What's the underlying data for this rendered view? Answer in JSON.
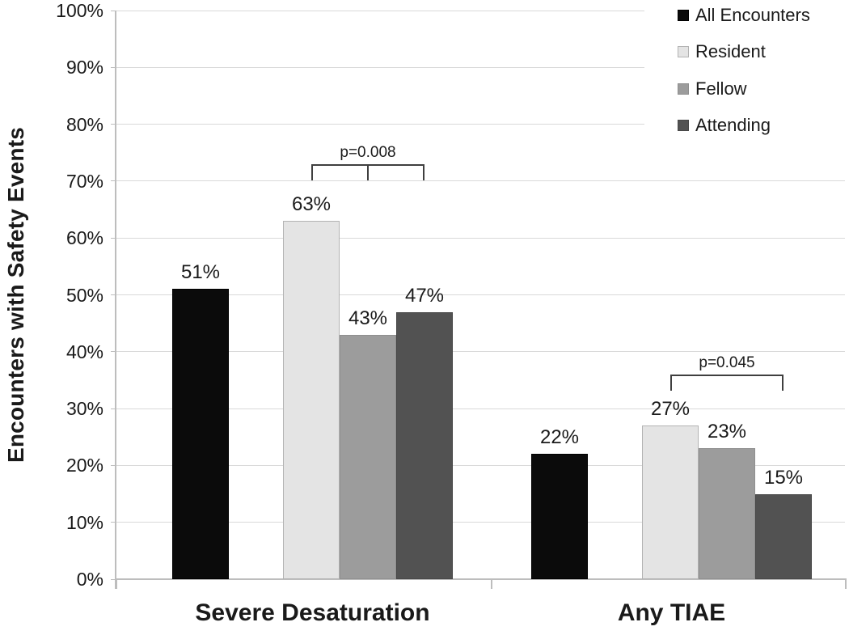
{
  "chart_data": {
    "type": "bar",
    "title": "",
    "xlabel": "",
    "ylabel": "Encounters with Safety Events",
    "categories": [
      "Severe Desaturation",
      "Any TIAE"
    ],
    "series": [
      {
        "name": "All Encounters",
        "values": [
          51,
          22
        ],
        "fill": "#0b0b0b",
        "border": "#000000"
      },
      {
        "name": "Resident",
        "values": [
          63,
          27
        ],
        "fill": "#e4e4e4",
        "border": "#b3b3b3"
      },
      {
        "name": "Fellow",
        "values": [
          43,
          23
        ],
        "fill": "#9c9c9c",
        "border": "#8f8f8f"
      },
      {
        "name": "Attending",
        "values": [
          47,
          15
        ],
        "fill": "#525252",
        "border": "#474747"
      }
    ],
    "value_label_suffix": "%",
    "ylim": [
      0,
      100
    ],
    "ytick_step": 10,
    "ytick_labels": [
      "0%",
      "10%",
      "20%",
      "30%",
      "40%",
      "50%",
      "60%",
      "70%",
      "80%",
      "90%",
      "100%"
    ],
    "grid": true,
    "legend_position": "top-right",
    "annotations": [
      {
        "label": "p=0.008",
        "category_index": 0,
        "from_series": 1,
        "to_series": 3,
        "y_value": 73,
        "mid_tick": true
      },
      {
        "label": "p=0.045",
        "category_index": 1,
        "from_series": 1,
        "to_series": 3,
        "y_value": 36,
        "mid_tick": false
      }
    ]
  },
  "colors": {
    "gridline": "#d9d9d9",
    "axis": "#bdbdbd",
    "bracket": "#3f3f3f",
    "text": "#1a1a1a",
    "legend_background": "#ffffff"
  }
}
